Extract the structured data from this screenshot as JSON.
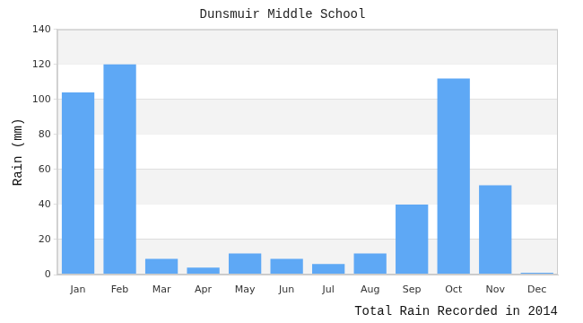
{
  "chart_data": {
    "type": "bar",
    "title": "Dunsmuir Middle School",
    "x_label": "Total Rain Recorded in 2014",
    "y_label": "Rain (mm)",
    "categories": [
      "Jan",
      "Feb",
      "Mar",
      "Apr",
      "May",
      "Jun",
      "Jul",
      "Aug",
      "Sep",
      "Oct",
      "Nov",
      "Dec"
    ],
    "values": [
      104,
      120,
      9,
      4,
      12,
      9,
      6,
      12,
      40,
      112,
      51,
      1
    ],
    "color": "#5ea8f5",
    "ylim": [
      0,
      140
    ],
    "yticks": [
      0,
      20,
      40,
      60,
      80,
      100,
      120,
      140
    ],
    "grid": true
  }
}
